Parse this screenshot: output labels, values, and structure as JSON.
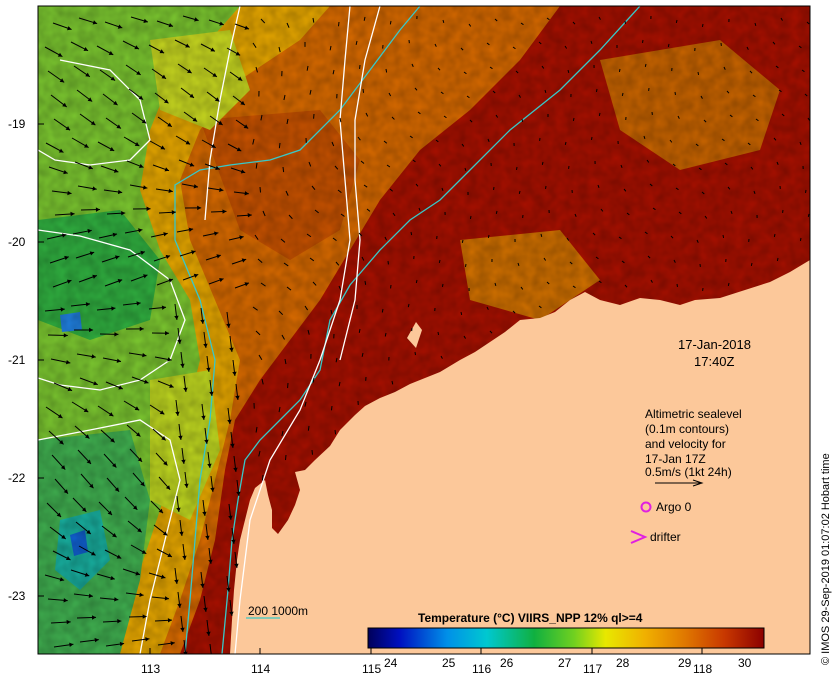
{
  "map": {
    "date": "17-Jan-2018",
    "time": "17:40Z",
    "legend_lines": [
      "Altimetric sealevel",
      "(0.1m contours)",
      "and velocity for",
      "17-Jan 17Z",
      "0.5m/s (1kt 24h)"
    ],
    "argo_label": "Argo 0",
    "drifter_label": "drifter",
    "isobath_label": "200  1000m",
    "colorbar_title": "Temperature (°C) VIIRS_NPP 12% ql>=4",
    "colorbar_ticks": [
      "24",
      "25",
      "26",
      "27",
      "28",
      "29",
      "30"
    ],
    "x_ticks": [
      "113",
      "114",
      "115",
      "116",
      "117",
      "118"
    ],
    "y_ticks": [
      "-19",
      "-20",
      "-21",
      "-22",
      "-23"
    ],
    "credit": "© IMOS 29-Sep-2019 01:07:02 Hobart time",
    "colors": {
      "land": "#fcc89a",
      "isobath": "#38c8c8",
      "argo": "#e020e0",
      "drifter": "#e020e0",
      "hot": "#a81000",
      "warm": "#d86a00",
      "cool": "#40c040"
    }
  }
}
